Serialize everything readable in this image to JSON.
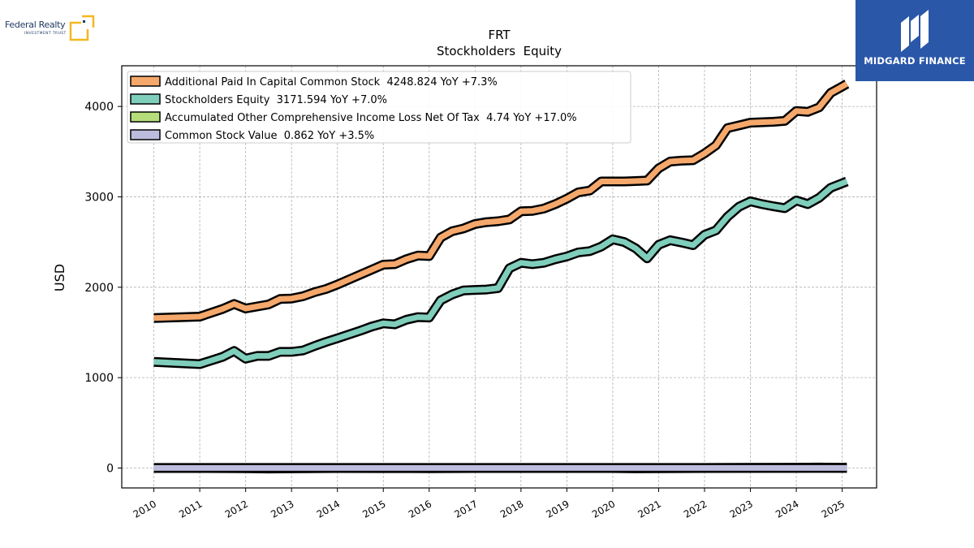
{
  "branding": {
    "left_logo_name": "Federal Realty",
    "left_logo_sub": "INVESTMENT TRUST",
    "right_logo_name": "MIDGARD FINANCE",
    "right_logo_bg": "#2a57a8"
  },
  "chart_data": {
    "type": "line",
    "title": "FRT",
    "subtitle": "Stockholders  Equity",
    "ylabel": "USD",
    "xlabel": "",
    "xlim": [
      2009.3,
      2025.75
    ],
    "ylim": [
      -220,
      4450
    ],
    "yticks": [
      0,
      1000,
      2000,
      3000,
      4000
    ],
    "xticks": [
      "2010",
      "2011",
      "2012",
      "2013",
      "2014",
      "2015",
      "2016",
      "2017",
      "2018",
      "2019",
      "2020",
      "2021",
      "2022",
      "2023",
      "2024",
      "2025"
    ],
    "grid": true,
    "legend_position": "top-left",
    "series": [
      {
        "name": "Additional Paid In Capital Common Stock  4248.824 YoY +7.3%",
        "color": "#f5a86b",
        "x": [
          2010.0,
          2011.0,
          2011.5,
          2011.75,
          2012.0,
          2012.5,
          2012.75,
          2013.0,
          2013.25,
          2013.5,
          2013.75,
          2014.0,
          2014.5,
          2015.0,
          2015.25,
          2015.5,
          2015.75,
          2016.0,
          2016.25,
          2016.5,
          2016.75,
          2017.0,
          2017.25,
          2017.5,
          2017.75,
          2018.0,
          2018.25,
          2018.5,
          2018.75,
          2019.0,
          2019.25,
          2019.5,
          2019.75,
          2020.0,
          2020.25,
          2020.5,
          2020.75,
          2021.0,
          2021.25,
          2021.5,
          2021.75,
          2022.0,
          2022.25,
          2022.5,
          2022.75,
          2023.0,
          2023.5,
          2023.75,
          2024.0,
          2024.25,
          2024.5,
          2024.75,
          2025.0,
          2025.1
        ],
        "values": [
          1660,
          1675,
          1760,
          1815,
          1765,
          1810,
          1870,
          1875,
          1900,
          1945,
          1980,
          2030,
          2140,
          2250,
          2255,
          2310,
          2350,
          2345,
          2550,
          2620,
          2650,
          2700,
          2720,
          2730,
          2750,
          2840,
          2845,
          2870,
          2920,
          2980,
          3050,
          3070,
          3170,
          3170,
          3170,
          3175,
          3180,
          3315,
          3390,
          3400,
          3405,
          3480,
          3570,
          3760,
          3790,
          3820,
          3830,
          3840,
          3950,
          3940,
          3990,
          4150,
          4220,
          4250
        ]
      },
      {
        "name": "Stockholders Equity  3171.594 YoY +7.0%",
        "color": "#7fcdbb",
        "x": [
          2010.0,
          2011.0,
          2011.5,
          2011.75,
          2012.0,
          2012.25,
          2012.5,
          2012.75,
          2013.0,
          2013.25,
          2013.5,
          2013.75,
          2014.0,
          2014.5,
          2014.75,
          2015.0,
          2015.25,
          2015.5,
          2015.75,
          2016.0,
          2016.25,
          2016.5,
          2016.75,
          2017.0,
          2017.25,
          2017.5,
          2017.75,
          2018.0,
          2018.25,
          2018.5,
          2018.75,
          2019.0,
          2019.25,
          2019.5,
          2019.75,
          2020.0,
          2020.25,
          2020.5,
          2020.75,
          2021.0,
          2021.25,
          2021.5,
          2021.75,
          2022.0,
          2022.25,
          2022.5,
          2022.75,
          2023.0,
          2023.25,
          2023.5,
          2023.75,
          2024.0,
          2024.25,
          2024.5,
          2024.75,
          2025.0,
          2025.1
        ],
        "values": [
          1175,
          1150,
          1230,
          1295,
          1210,
          1240,
          1240,
          1285,
          1285,
          1300,
          1350,
          1395,
          1435,
          1520,
          1565,
          1600,
          1590,
          1640,
          1670,
          1665,
          1855,
          1920,
          1965,
          1970,
          1975,
          1990,
          2210,
          2270,
          2255,
          2270,
          2310,
          2340,
          2385,
          2400,
          2450,
          2530,
          2500,
          2430,
          2320,
          2470,
          2520,
          2495,
          2465,
          2580,
          2630,
          2780,
          2890,
          2950,
          2920,
          2895,
          2875,
          2960,
          2920,
          2990,
          3100,
          3150,
          3170
        ]
      },
      {
        "name": "Accumulated Other Comprehensive Income Loss Net Of Tax  4.74 YoY +17.0%",
        "color": "#b5de7a",
        "x": [
          2010.0,
          2011.0,
          2012.0,
          2012.5,
          2013.0,
          2014.0,
          2015.0,
          2016.0,
          2017.0,
          2018.0,
          2019.0,
          2020.0,
          2020.5,
          2021.0,
          2022.0,
          2023.0,
          2024.0,
          2024.5,
          2025.0,
          2025.1
        ],
        "values": [
          0,
          0,
          -2,
          -5,
          -4,
          0,
          -1,
          -2,
          0,
          0,
          0,
          0,
          -4,
          -2,
          0,
          2,
          4,
          5,
          4,
          5
        ]
      },
      {
        "name": "Common Stock Value  0.862 YoY +3.5%",
        "color": "#bcbddc",
        "x": [
          2010.0,
          2025.1
        ],
        "values": [
          0.6,
          0.9
        ]
      }
    ]
  }
}
